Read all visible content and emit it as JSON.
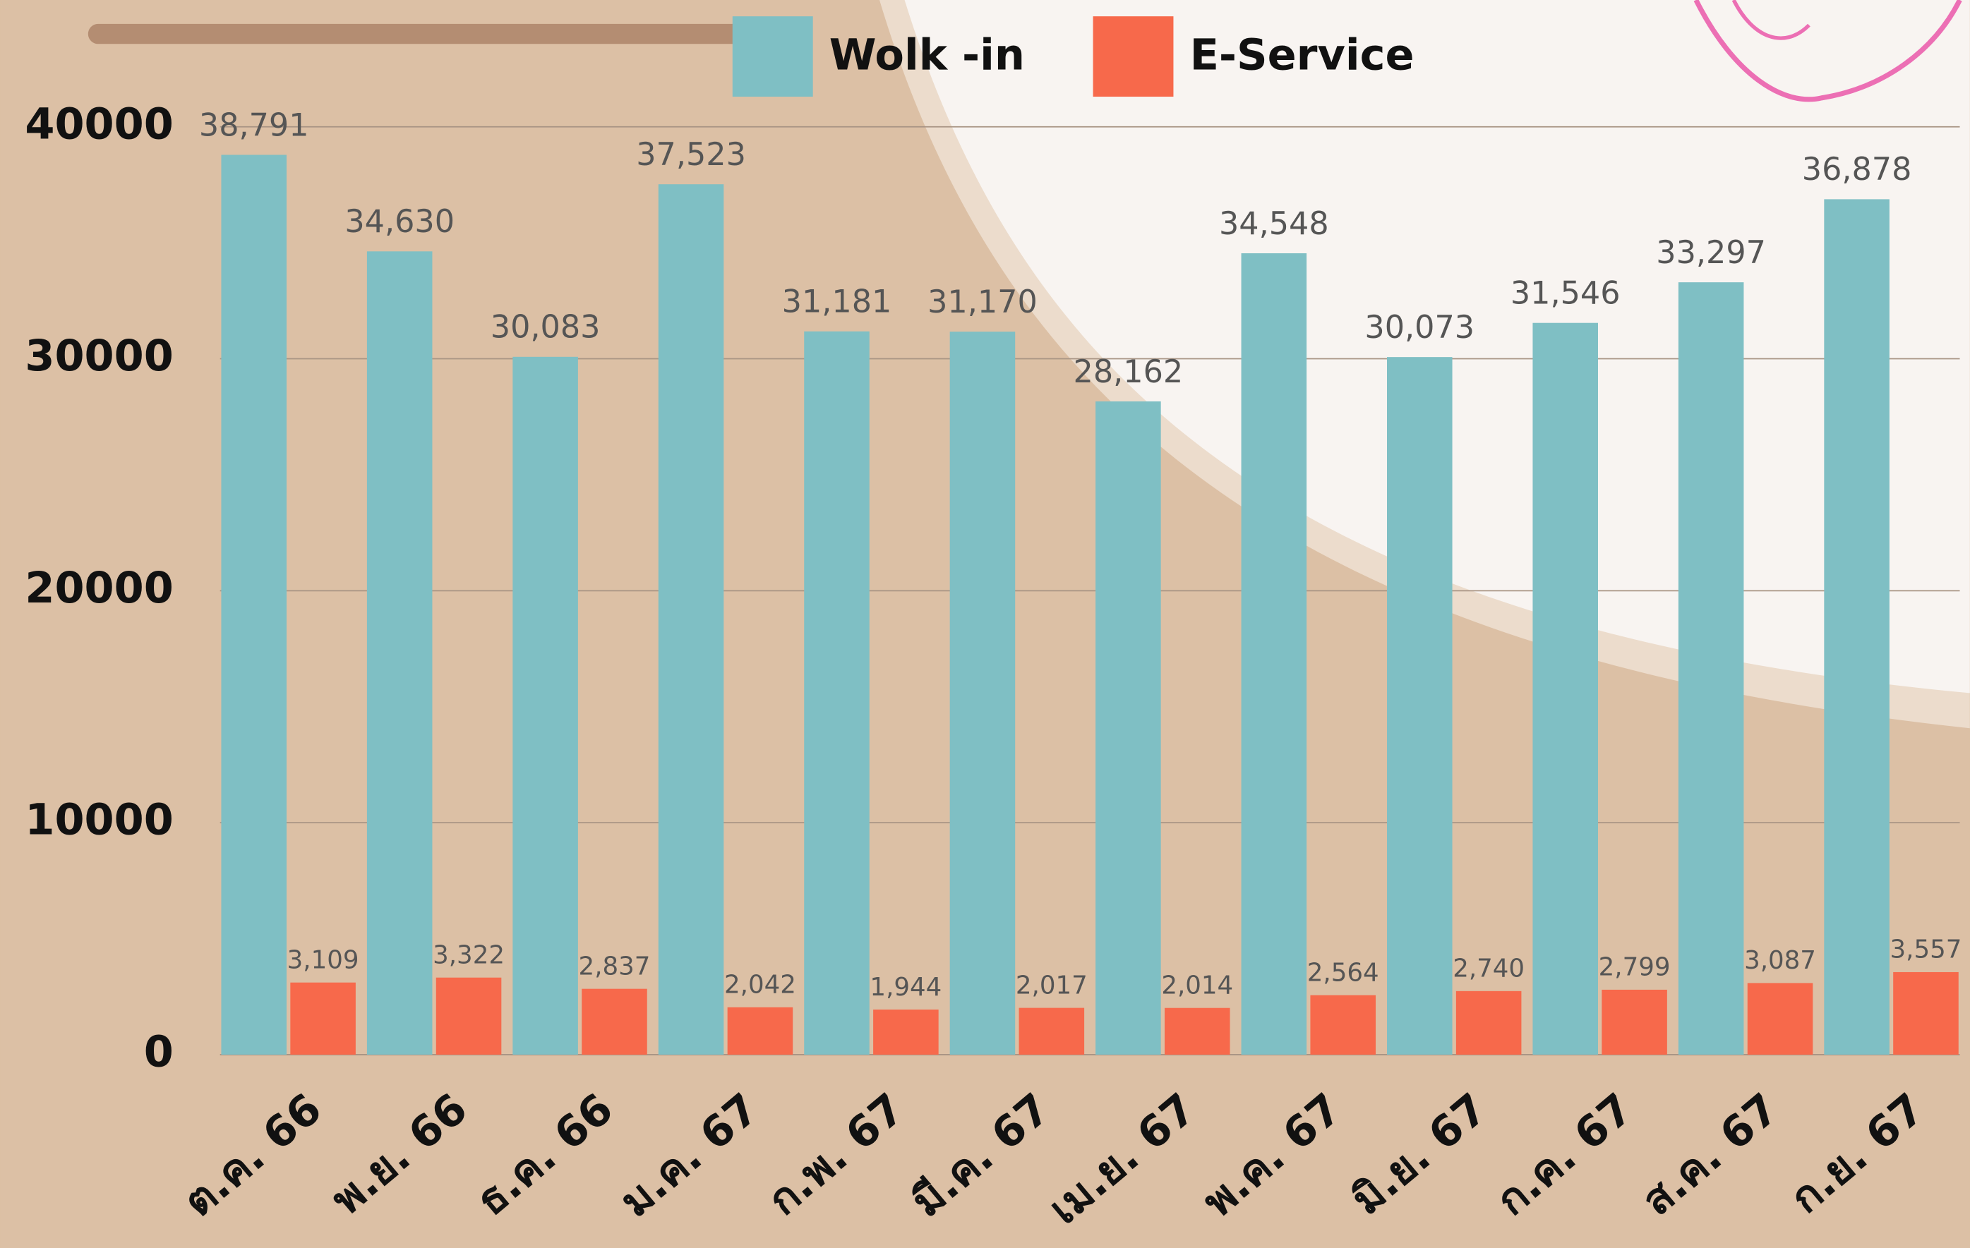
{
  "chart_data": {
    "type": "bar",
    "categories": [
      "ต.ค. 66",
      "พ.ย. 66",
      "ธ.ค. 66",
      "ม.ค. 67",
      "ก.พ. 67",
      "มี.ค. 67",
      "เม.ย. 67",
      "พ.ค. 67",
      "มิ.ย. 67",
      "ก.ค. 67",
      "ส.ค. 67",
      "ก.ย. 67"
    ],
    "series": [
      {
        "name": "Wolk -in",
        "color": "#7fbfc4",
        "values": [
          38791,
          34630,
          30083,
          37523,
          31181,
          31170,
          28162,
          34548,
          30073,
          31546,
          33297,
          36878
        ],
        "value_labels": [
          "38,791",
          "34,630",
          "30,083",
          "37,523",
          "31,181",
          "31,170",
          "28,162",
          "34,548",
          "30,073",
          "31,546",
          "33,297",
          "36,878"
        ]
      },
      {
        "name": "E-Service",
        "color": "#f7694b",
        "values": [
          3109,
          3322,
          2837,
          2042,
          1944,
          2017,
          2014,
          2564,
          2740,
          2799,
          3087,
          3557
        ],
        "value_labels": [
          "3,109",
          "3,322",
          "2,837",
          "2,042",
          "1,944",
          "2,017",
          "2,014",
          "2,564",
          "2,740",
          "2,799",
          "3,087",
          "3,557"
        ]
      }
    ],
    "ylim": [
      0,
      40000
    ],
    "yticks": [
      0,
      10000,
      20000,
      30000,
      40000
    ],
    "grid": true
  }
}
